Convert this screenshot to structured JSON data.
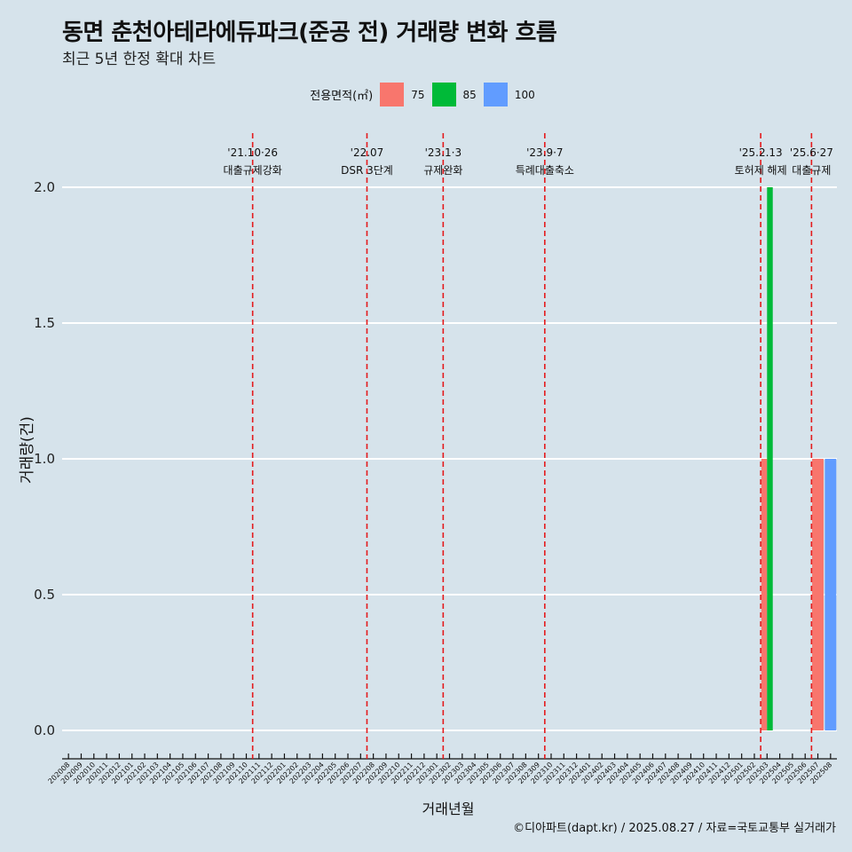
{
  "title": "동면 춘천아테라에듀파크(준공 전) 거래량 변화 흐름",
  "subtitle": "최근 5년 한정 확대 차트",
  "caption": "©디아파트(dapt.kr) / 2025.08.27 / 자료=국토교통부 실거래가",
  "colors": {
    "background": "#d6e3eb",
    "s75": "#f8766d",
    "s85": "#00ba38",
    "s100": "#619cff",
    "event_line": "#e41a1c"
  },
  "chart_data": {
    "type": "bar",
    "title": "동면 춘천아테라에듀파크(준공 전) 거래량 변화 흐름",
    "xlabel": "거래년월",
    "ylabel": "거래량(건)",
    "ylim": [
      0,
      2.0
    ],
    "yticks": [
      "0.0",
      "0.5",
      "1.0",
      "1.5",
      "2.0"
    ],
    "legend_title": "전용면적(㎡)",
    "categories": [
      "202008",
      "202009",
      "202010",
      "202011",
      "202012",
      "202101",
      "202102",
      "202103",
      "202104",
      "202105",
      "202106",
      "202107",
      "202108",
      "202109",
      "202110",
      "202111",
      "202112",
      "202201",
      "202202",
      "202203",
      "202204",
      "202205",
      "202206",
      "202207",
      "202208",
      "202209",
      "202210",
      "202211",
      "202212",
      "202301",
      "202302",
      "202303",
      "202304",
      "202305",
      "202306",
      "202307",
      "202308",
      "202309",
      "202310",
      "202311",
      "202312",
      "202401",
      "202402",
      "202403",
      "202404",
      "202405",
      "202406",
      "202407",
      "202408",
      "202409",
      "202410",
      "202411",
      "202412",
      "202501",
      "202502",
      "202503",
      "202504",
      "202505",
      "202506",
      "202507",
      "202508"
    ],
    "series": [
      {
        "name": "75",
        "color": "#f8766d",
        "points": [
          {
            "x": "202503",
            "value": 1
          },
          {
            "x": "202507",
            "value": 1
          }
        ]
      },
      {
        "name": "85",
        "color": "#00ba38",
        "points": [
          {
            "x": "202503",
            "value": 2
          }
        ]
      },
      {
        "name": "100",
        "color": "#619cff",
        "points": [
          {
            "x": "202508",
            "value": 1
          }
        ]
      }
    ],
    "events": [
      {
        "x": "202110",
        "date": "'21.10·26",
        "label": "대출규제강화"
      },
      {
        "x": "202207",
        "date": "'22.07",
        "label": "DSR 3단계"
      },
      {
        "x": "202301",
        "date": "'23.1·3",
        "label": "규제완화"
      },
      {
        "x": "202309",
        "date": "'23.9·7",
        "label": "특례대출축소"
      },
      {
        "x": "202502",
        "date": "'25.2.13",
        "label": "토허제 해제"
      },
      {
        "x": "202506",
        "date": "'25.6·27",
        "label": "대출규제"
      }
    ]
  }
}
